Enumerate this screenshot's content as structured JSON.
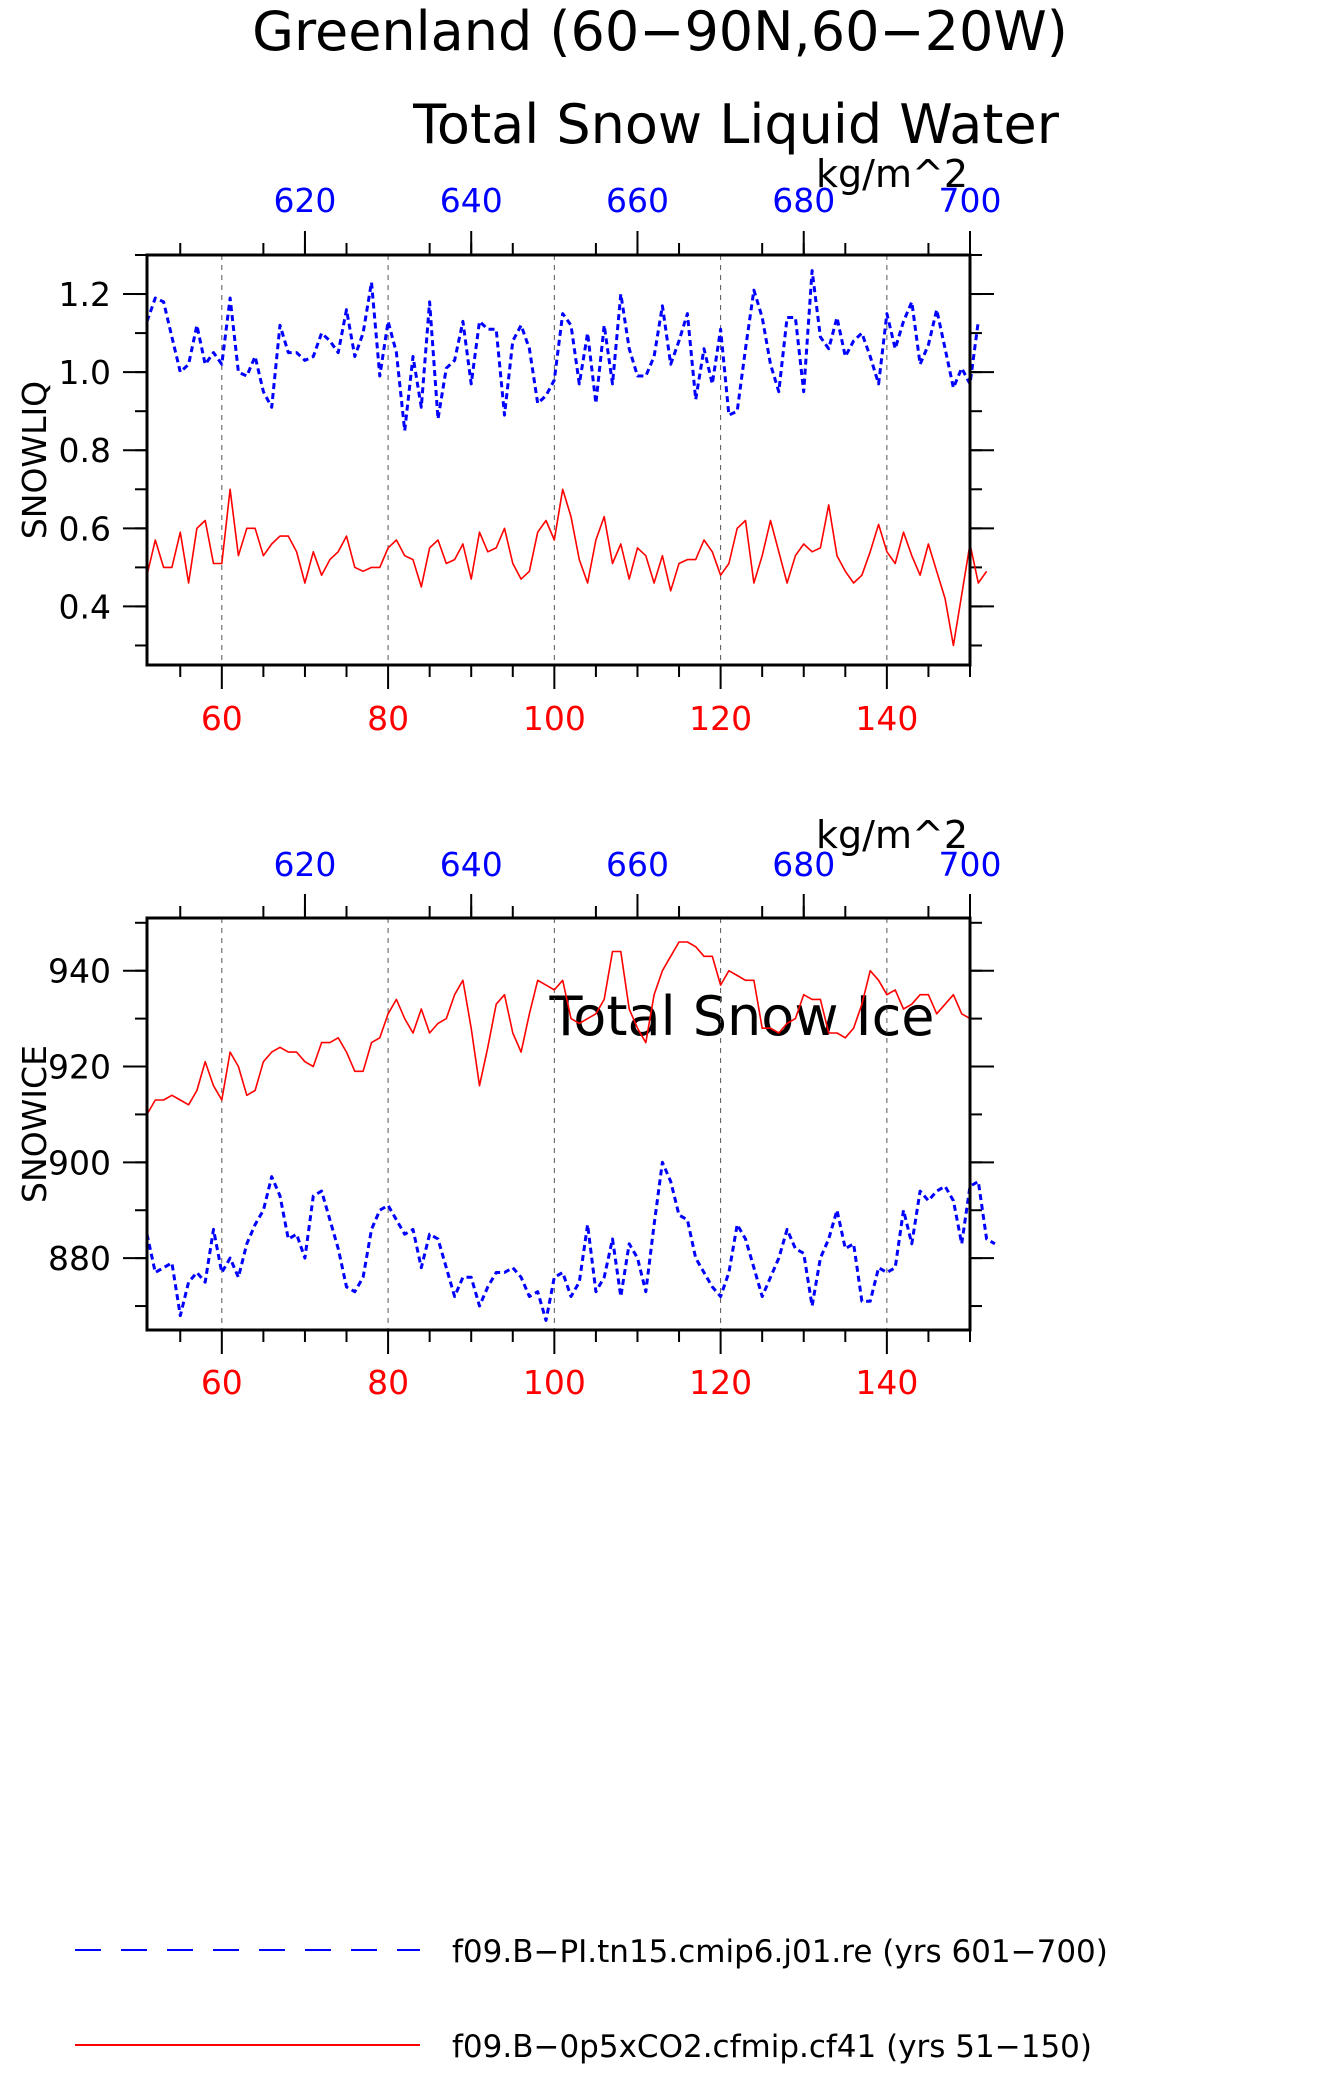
{
  "title": {
    "line1": "Greenland (60−90N,60−20W)",
    "line2": "Total Snow Liquid Water"
  },
  "colors": {
    "series1": "#0000ff",
    "series2": "#ff0000",
    "frame": "#000000",
    "grid": "#555555"
  },
  "legend": {
    "entries": [
      {
        "label": "f09.B−PI.tn15.cmip6.j01.re (yrs 601−700)",
        "color": "#0000ff",
        "style": "dashed"
      },
      {
        "label": "f09.B−0p5xCO2.cfmip.cf41 (yrs 51−150)",
        "color": "#ff0000",
        "style": "solid"
      }
    ]
  },
  "chart_data": [
    {
      "type": "line",
      "title": "Total Snow Liquid Water",
      "ylabel": "SNOWLIQ",
      "units": "kg/m^2",
      "ylim": [
        0.25,
        1.3
      ],
      "yticks": [
        0.4,
        0.6,
        0.8,
        1.0,
        1.2
      ],
      "ytick_labels": [
        "0.4",
        "0.6",
        "0.8",
        "1.0",
        "1.2"
      ],
      "bottom_axis": {
        "range": [
          51,
          150
        ],
        "ticks": [
          60,
          80,
          100,
          120,
          140
        ],
        "labels": [
          "60",
          "80",
          "100",
          "120",
          "140"
        ],
        "color": "#ff0000"
      },
      "top_axis": {
        "range": [
          601,
          700
        ],
        "ticks": [
          620,
          640,
          660,
          680,
          700
        ],
        "labels": [
          "620",
          "640",
          "660",
          "680",
          "700"
        ],
        "color": "#0000ff"
      },
      "grid": "vertical dashed at bottom-axis major ticks",
      "series": [
        {
          "name": "f09.B−PI.tn15.cmip6.j01.re (yrs 601−700)",
          "axis": "top",
          "x_start": 601,
          "color": "#0000ff",
          "style": "dashed",
          "values": [
            1.13,
            1.19,
            1.18,
            1.09,
            1.0,
            1.02,
            1.12,
            1.02,
            1.05,
            1.02,
            1.19,
            1.0,
            0.99,
            1.04,
            0.95,
            0.91,
            1.12,
            1.05,
            1.05,
            1.03,
            1.04,
            1.1,
            1.08,
            1.05,
            1.16,
            1.04,
            1.1,
            1.23,
            0.99,
            1.13,
            1.05,
            0.85,
            1.04,
            0.91,
            1.18,
            0.88,
            1.01,
            1.03,
            1.13,
            0.97,
            1.13,
            1.11,
            1.11,
            0.89,
            1.08,
            1.12,
            1.06,
            0.92,
            0.94,
            0.98,
            1.15,
            1.12,
            0.97,
            1.1,
            0.92,
            1.12,
            0.97,
            1.2,
            1.06,
            0.99,
            0.99,
            1.04,
            1.17,
            1.02,
            1.08,
            1.15,
            0.93,
            1.06,
            0.97,
            1.11,
            0.89,
            0.9,
            1.06,
            1.21,
            1.14,
            1.02,
            0.95,
            1.14,
            1.14,
            0.95,
            1.26,
            1.09,
            1.06,
            1.14,
            1.04,
            1.08,
            1.1,
            1.04,
            0.97,
            1.15,
            1.06,
            1.13,
            1.18,
            1.02,
            1.07,
            1.16,
            1.06,
            0.96,
            1.01,
            0.97,
            1.13
          ]
        },
        {
          "name": "f09.B−0p5xCO2.cfmip.cf41 (yrs 51−150)",
          "axis": "bottom",
          "x_start": 51,
          "color": "#ff0000",
          "style": "solid",
          "values": [
            0.48,
            0.57,
            0.5,
            0.5,
            0.59,
            0.46,
            0.6,
            0.62,
            0.51,
            0.51,
            0.7,
            0.53,
            0.6,
            0.6,
            0.53,
            0.56,
            0.58,
            0.58,
            0.54,
            0.46,
            0.54,
            0.48,
            0.52,
            0.54,
            0.58,
            0.5,
            0.49,
            0.5,
            0.5,
            0.55,
            0.57,
            0.53,
            0.52,
            0.45,
            0.55,
            0.57,
            0.51,
            0.52,
            0.56,
            0.47,
            0.59,
            0.54,
            0.55,
            0.6,
            0.51,
            0.47,
            0.49,
            0.59,
            0.62,
            0.57,
            0.7,
            0.63,
            0.52,
            0.46,
            0.57,
            0.63,
            0.51,
            0.56,
            0.47,
            0.55,
            0.53,
            0.46,
            0.53,
            0.44,
            0.51,
            0.52,
            0.52,
            0.57,
            0.54,
            0.48,
            0.51,
            0.6,
            0.62,
            0.46,
            0.53,
            0.62,
            0.54,
            0.46,
            0.53,
            0.56,
            0.54,
            0.55,
            0.66,
            0.53,
            0.49,
            0.46,
            0.48,
            0.54,
            0.61,
            0.54,
            0.51,
            0.59,
            0.53,
            0.48,
            0.56,
            0.49,
            0.42,
            0.3,
            0.43,
            0.56,
            0.46,
            0.49
          ]
        }
      ]
    },
    {
      "type": "line",
      "title": "Total Snow Ice",
      "ylabel": "SNOWICE",
      "units": "kg/m^2",
      "ylim": [
        865,
        951
      ],
      "yticks": [
        880,
        900,
        920,
        940
      ],
      "ytick_labels": [
        "880",
        "900",
        "920",
        "940"
      ],
      "bottom_axis": {
        "range": [
          51,
          150
        ],
        "ticks": [
          60,
          80,
          100,
          120,
          140
        ],
        "labels": [
          "60",
          "80",
          "100",
          "120",
          "140"
        ],
        "color": "#ff0000"
      },
      "top_axis": {
        "range": [
          601,
          700
        ],
        "ticks": [
          620,
          640,
          660,
          680,
          700
        ],
        "labels": [
          "620",
          "640",
          "660",
          "680",
          "700"
        ],
        "color": "#0000ff"
      },
      "grid": "vertical dashed at bottom-axis major ticks",
      "series": [
        {
          "name": "f09.B−PI.tn15.cmip6.j01.re (yrs 601−700)",
          "axis": "top",
          "x_start": 601,
          "color": "#0000ff",
          "style": "dashed",
          "values": [
            885,
            877,
            878,
            879,
            868,
            875,
            877,
            875,
            886,
            877,
            880,
            876,
            883,
            887,
            890,
            897,
            893,
            884,
            885,
            880,
            893,
            894,
            888,
            882,
            874,
            873,
            876,
            886,
            890,
            891,
            888,
            885,
            886,
            878,
            885,
            884,
            878,
            872,
            876,
            876,
            870,
            874,
            877,
            877,
            878,
            876,
            872,
            873,
            867,
            876,
            877,
            872,
            875,
            887,
            873,
            876,
            884,
            872,
            883,
            880,
            873,
            887,
            900,
            896,
            889,
            888,
            880,
            877,
            874,
            872,
            877,
            887,
            884,
            878,
            872,
            876,
            880,
            886,
            882,
            881,
            870,
            880,
            884,
            890,
            882,
            883,
            871,
            871,
            878,
            877,
            878,
            890,
            883,
            894,
            892,
            894,
            895,
            892,
            883,
            895,
            896,
            884,
            883
          ]
        },
        {
          "name": "f09.B−0p5xCO2.cfmip.cf41 (yrs 51−150)",
          "axis": "bottom",
          "x_start": 51,
          "color": "#ff0000",
          "style": "solid",
          "values": [
            910,
            913,
            913,
            914,
            913,
            912,
            915,
            921,
            916,
            913,
            923,
            920,
            914,
            915,
            921,
            923,
            924,
            923,
            923,
            921,
            920,
            925,
            925,
            926,
            923,
            919,
            919,
            925,
            926,
            931,
            934,
            930,
            927,
            932,
            927,
            929,
            930,
            935,
            938,
            928,
            916,
            924,
            933,
            935,
            927,
            923,
            931,
            938,
            937,
            936,
            938,
            930,
            929,
            930,
            931,
            934,
            944,
            944,
            932,
            928,
            925,
            935,
            940,
            943,
            946,
            946,
            945,
            943,
            943,
            937,
            940,
            939,
            938,
            938,
            928,
            928,
            927,
            929,
            930,
            935,
            934,
            934,
            927,
            927,
            926,
            928,
            933,
            940,
            938,
            935,
            936,
            932,
            933,
            935,
            935,
            931,
            933,
            935,
            931,
            930
          ]
        }
      ]
    }
  ]
}
